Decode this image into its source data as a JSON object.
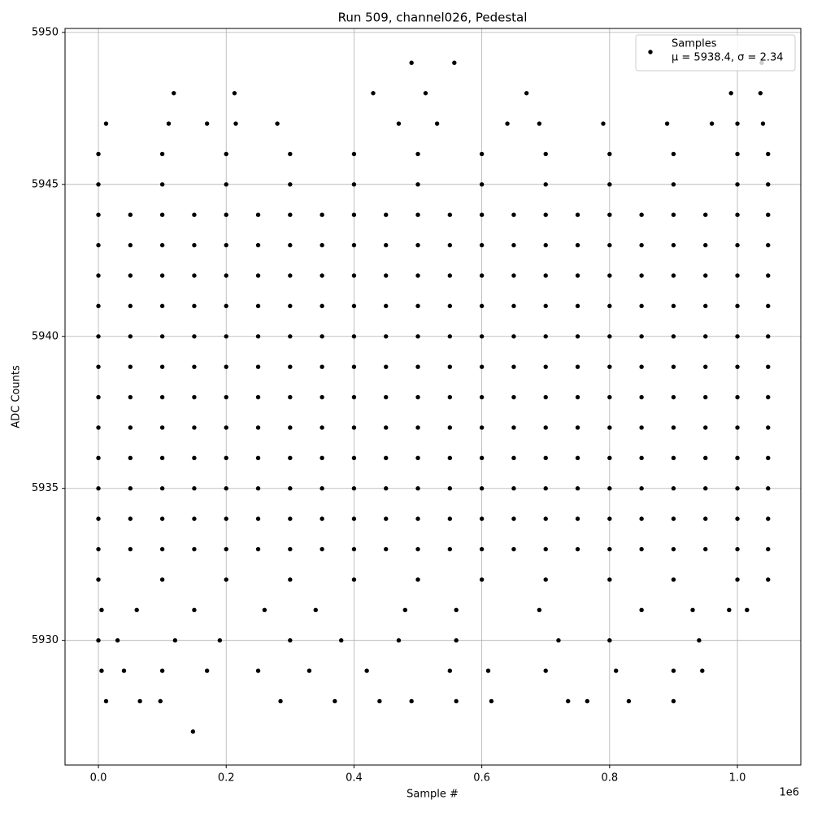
{
  "chart_data": {
    "type": "scatter",
    "title": "Run 509, channel026, Pedestal",
    "x_label": "Sample #",
    "y_label": "ADC Counts",
    "x_offset_label": "1e6",
    "legend_note": "μ = 5938.4, σ = 2.34",
    "legend": "upper right",
    "grid": true,
    "xlim": [
      -52200,
      1099200
    ],
    "ylim": [
      5925.9,
      5950.13
    ],
    "xticks": [
      {
        "value": 0,
        "label": "0.0"
      },
      {
        "value": 200000,
        "label": "0.2"
      },
      {
        "value": 400000,
        "label": "0.4"
      },
      {
        "value": 600000,
        "label": "0.6"
      },
      {
        "value": 800000,
        "label": "0.8"
      },
      {
        "value": 1000000,
        "label": "1.0"
      }
    ],
    "yticks": [
      5930,
      5935,
      5940,
      5945,
      5950
    ],
    "x": [
      0,
      50000,
      100000,
      150000,
      200000,
      250000,
      300000,
      350000,
      400000,
      450000,
      500000,
      550000,
      600000,
      650000,
      700000,
      750000,
      800000,
      850000,
      900000,
      950000,
      1000000,
      1048000,
      0,
      50000,
      100000,
      150000,
      200000,
      250000,
      300000,
      350000,
      400000,
      450000,
      500000,
      550000,
      600000,
      650000,
      700000,
      750000,
      800000,
      850000,
      900000,
      950000,
      1000000,
      1048000,
      0,
      50000,
      100000,
      150000,
      200000,
      250000,
      300000,
      350000,
      400000,
      450000,
      500000,
      550000,
      600000,
      650000,
      700000,
      750000,
      800000,
      850000,
      900000,
      950000,
      1000000,
      1048000,
      0,
      50000,
      100000,
      150000,
      200000,
      250000,
      300000,
      350000,
      400000,
      450000,
      500000,
      550000,
      600000,
      650000,
      700000,
      750000,
      800000,
      850000,
      900000,
      950000,
      1000000,
      1048000,
      0,
      50000,
      100000,
      150000,
      200000,
      250000,
      300000,
      350000,
      400000,
      450000,
      500000,
      550000,
      600000,
      650000,
      700000,
      750000,
      800000,
      850000,
      900000,
      950000,
      1000000,
      1048000,
      0,
      50000,
      100000,
      150000,
      200000,
      250000,
      300000,
      350000,
      400000,
      450000,
      500000,
      550000,
      600000,
      650000,
      700000,
      750000,
      800000,
      850000,
      900000,
      950000,
      1000000,
      1048000,
      0,
      50000,
      100000,
      150000,
      200000,
      250000,
      300000,
      350000,
      400000,
      450000,
      500000,
      550000,
      600000,
      650000,
      700000,
      750000,
      800000,
      850000,
      900000,
      950000,
      1000000,
      1048000,
      0,
      50000,
      100000,
      150000,
      200000,
      250000,
      300000,
      350000,
      400000,
      450000,
      500000,
      550000,
      600000,
      650000,
      700000,
      750000,
      800000,
      850000,
      900000,
      950000,
      1000000,
      1048000,
      0,
      50000,
      100000,
      150000,
      200000,
      250000,
      300000,
      350000,
      400000,
      450000,
      500000,
      550000,
      600000,
      650000,
      700000,
      750000,
      800000,
      850000,
      900000,
      950000,
      1000000,
      1048000,
      0,
      50000,
      100000,
      150000,
      200000,
      250000,
      300000,
      350000,
      400000,
      450000,
      500000,
      550000,
      600000,
      650000,
      700000,
      750000,
      800000,
      850000,
      900000,
      950000,
      1000000,
      1048000,
      0,
      50000,
      100000,
      150000,
      200000,
      250000,
      300000,
      350000,
      400000,
      450000,
      500000,
      550000,
      600000,
      650000,
      700000,
      750000,
      800000,
      850000,
      900000,
      950000,
      1000000,
      1048000,
      0,
      50000,
      100000,
      150000,
      200000,
      250000,
      300000,
      350000,
      400000,
      450000,
      500000,
      550000,
      600000,
      650000,
      700000,
      750000,
      800000,
      850000,
      900000,
      950000,
      1000000,
      1048000,
      0,
      100000,
      200000,
      300000,
      400000,
      500000,
      600000,
      700000,
      800000,
      900000,
      1000000,
      1048000,
      0,
      100000,
      200000,
      300000,
      400000,
      500000,
      600000,
      700000,
      800000,
      900000,
      1000000,
      1048000,
      0,
      100000,
      200000,
      300000,
      400000,
      500000,
      600000,
      700000,
      800000,
      900000,
      1000000,
      1048000,
      5000,
      60000,
      150000,
      260000,
      340000,
      480000,
      560000,
      690000,
      850000,
      930000,
      987000,
      1015000,
      0,
      30000,
      120000,
      190000,
      300000,
      380000,
      470000,
      560000,
      720000,
      800000,
      940000,
      5000,
      40000,
      100000,
      170000,
      250000,
      330000,
      420000,
      550000,
      610000,
      700000,
      810000,
      900000,
      945000,
      12000,
      65000,
      97000,
      285000,
      370000,
      440000,
      490000,
      560000,
      615000,
      735000,
      765000,
      830000,
      900000,
      148000,
      12000,
      110000,
      170000,
      215000,
      280000,
      470000,
      530000,
      640000,
      690000,
      790000,
      890000,
      960000,
      1000000,
      1040000,
      118000,
      213000,
      430000,
      512000,
      670000,
      990000,
      1036000,
      490000,
      557000,
      1038000
    ],
    "series": [
      {
        "name": "Samples",
        "color": "#000000",
        "values": [
          5933,
          5933,
          5933,
          5933,
          5933,
          5933,
          5933,
          5933,
          5933,
          5933,
          5933,
          5933,
          5933,
          5933,
          5933,
          5933,
          5933,
          5933,
          5933,
          5933,
          5933,
          5933,
          5934,
          5934,
          5934,
          5934,
          5934,
          5934,
          5934,
          5934,
          5934,
          5934,
          5934,
          5934,
          5934,
          5934,
          5934,
          5934,
          5934,
          5934,
          5934,
          5934,
          5934,
          5934,
          5935,
          5935,
          5935,
          5935,
          5935,
          5935,
          5935,
          5935,
          5935,
          5935,
          5935,
          5935,
          5935,
          5935,
          5935,
          5935,
          5935,
          5935,
          5935,
          5935,
          5935,
          5935,
          5936,
          5936,
          5936,
          5936,
          5936,
          5936,
          5936,
          5936,
          5936,
          5936,
          5936,
          5936,
          5936,
          5936,
          5936,
          5936,
          5936,
          5936,
          5936,
          5936,
          5936,
          5936,
          5937,
          5937,
          5937,
          5937,
          5937,
          5937,
          5937,
          5937,
          5937,
          5937,
          5937,
          5937,
          5937,
          5937,
          5937,
          5937,
          5937,
          5937,
          5937,
          5937,
          5937,
          5937,
          5938,
          5938,
          5938,
          5938,
          5938,
          5938,
          5938,
          5938,
          5938,
          5938,
          5938,
          5938,
          5938,
          5938,
          5938,
          5938,
          5938,
          5938,
          5938,
          5938,
          5938,
          5938,
          5939,
          5939,
          5939,
          5939,
          5939,
          5939,
          5939,
          5939,
          5939,
          5939,
          5939,
          5939,
          5939,
          5939,
          5939,
          5939,
          5939,
          5939,
          5939,
          5939,
          5939,
          5939,
          5940,
          5940,
          5940,
          5940,
          5940,
          5940,
          5940,
          5940,
          5940,
          5940,
          5940,
          5940,
          5940,
          5940,
          5940,
          5940,
          5940,
          5940,
          5940,
          5940,
          5940,
          5940,
          5941,
          5941,
          5941,
          5941,
          5941,
          5941,
          5941,
          5941,
          5941,
          5941,
          5941,
          5941,
          5941,
          5941,
          5941,
          5941,
          5941,
          5941,
          5941,
          5941,
          5941,
          5941,
          5942,
          5942,
          5942,
          5942,
          5942,
          5942,
          5942,
          5942,
          5942,
          5942,
          5942,
          5942,
          5942,
          5942,
          5942,
          5942,
          5942,
          5942,
          5942,
          5942,
          5942,
          5942,
          5943,
          5943,
          5943,
          5943,
          5943,
          5943,
          5943,
          5943,
          5943,
          5943,
          5943,
          5943,
          5943,
          5943,
          5943,
          5943,
          5943,
          5943,
          5943,
          5943,
          5943,
          5943,
          5944,
          5944,
          5944,
          5944,
          5944,
          5944,
          5944,
          5944,
          5944,
          5944,
          5944,
          5944,
          5944,
          5944,
          5944,
          5944,
          5944,
          5944,
          5944,
          5944,
          5944,
          5944,
          5932,
          5932,
          5932,
          5932,
          5932,
          5932,
          5932,
          5932,
          5932,
          5932,
          5932,
          5932,
          5945,
          5945,
          5945,
          5945,
          5945,
          5945,
          5945,
          5945,
          5945,
          5945,
          5945,
          5945,
          5946,
          5946,
          5946,
          5946,
          5946,
          5946,
          5946,
          5946,
          5946,
          5946,
          5946,
          5946,
          5931,
          5931,
          5931,
          5931,
          5931,
          5931,
          5931,
          5931,
          5931,
          5931,
          5931,
          5931,
          5930,
          5930,
          5930,
          5930,
          5930,
          5930,
          5930,
          5930,
          5930,
          5930,
          5930,
          5929,
          5929,
          5929,
          5929,
          5929,
          5929,
          5929,
          5929,
          5929,
          5929,
          5929,
          5929,
          5929,
          5928,
          5928,
          5928,
          5928,
          5928,
          5928,
          5928,
          5928,
          5928,
          5928,
          5928,
          5928,
          5928,
          5927,
          5947,
          5947,
          5947,
          5947,
          5947,
          5947,
          5947,
          5947,
          5947,
          5947,
          5947,
          5947,
          5947,
          5947,
          5948,
          5948,
          5948,
          5948,
          5948,
          5948,
          5948,
          5949,
          5949,
          5949
        ]
      }
    ]
  }
}
